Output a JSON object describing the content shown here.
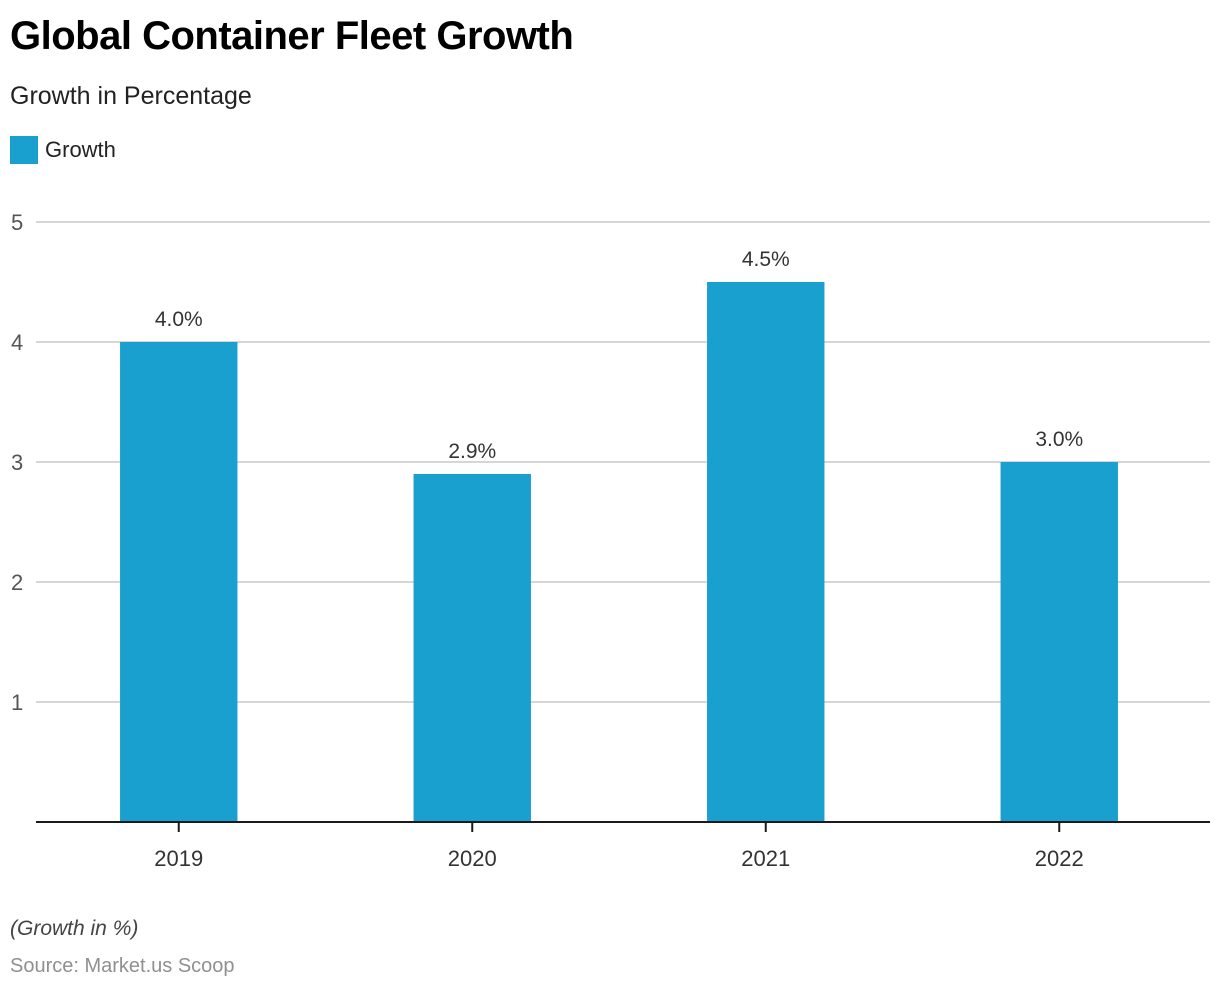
{
  "header": {
    "title": "Global Container Fleet Growth",
    "subtitle": "Growth in Percentage"
  },
  "legend": {
    "items": [
      {
        "label": "Growth",
        "color": "#1aa0ce"
      }
    ]
  },
  "footer": {
    "notes": "(Growth in %)",
    "source": "Source: Market.us Scoop"
  },
  "colors": {
    "bar": "#1aa0ce",
    "grid": "#d6d6d6",
    "axis": "#1a1a1a",
    "tick_label": "#555555",
    "data_label": "#333333"
  },
  "chart_data": {
    "type": "bar",
    "title": "Global Container Fleet Growth",
    "subtitle": "Growth in Percentage",
    "categories": [
      "2019",
      "2020",
      "2021",
      "2022"
    ],
    "series": [
      {
        "name": "Growth",
        "values": [
          4.0,
          2.9,
          4.5,
          3.0
        ]
      }
    ],
    "data_labels": [
      "4.0%",
      "2.9%",
      "4.5%",
      "3.0%"
    ],
    "xlabel": "",
    "ylabel": "",
    "ylim": [
      0,
      5
    ],
    "yticks": [
      1,
      2,
      3,
      4,
      5
    ],
    "grid": true,
    "legend_position": "top-left",
    "notes": "(Growth in %)",
    "source": "Source: Market.us Scoop"
  }
}
